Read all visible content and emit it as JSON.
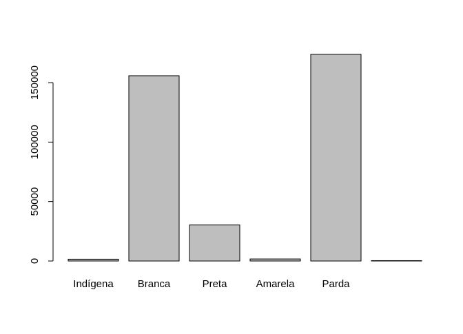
{
  "chart_data": {
    "type": "bar",
    "title": "",
    "xlabel": "",
    "ylabel": "",
    "categories": [
      "Indígena",
      "Branca",
      "Preta",
      "Amarela",
      "Parda",
      ""
    ],
    "values": [
      1500,
      155800,
      30300,
      1700,
      173800,
      300
    ],
    "ylim": [
      0,
      180000
    ],
    "yticks": [
      0,
      50000,
      100000,
      150000
    ],
    "ytick_labels": [
      "0",
      "50000",
      "100000",
      "150000"
    ],
    "bar_fill": "#bebebe",
    "bar_stroke": "#000000",
    "grid": false,
    "legend": "none"
  }
}
